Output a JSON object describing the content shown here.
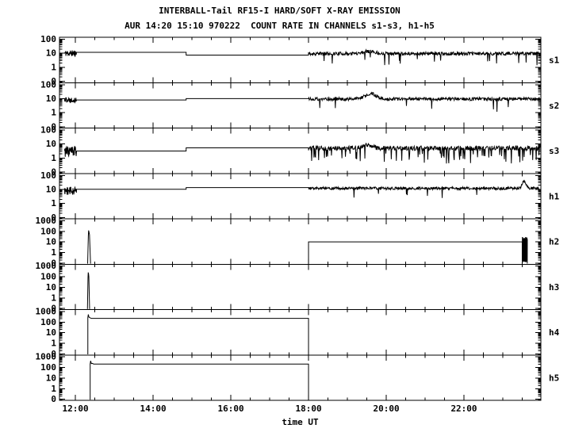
{
  "chart_data": {
    "type": "line",
    "title": "INTERBALL-Tail RF15-I HARD/SOFT X-RAY EMISSION",
    "subtitle": "AUR 14:20 15:10 970222  COUNT RATE IN CHANNELS s1-s3, h1-h5",
    "xlabel": "time UT",
    "x_unit": "hours UT on 1997-02-22",
    "x_range": [
      11.59,
      23.98
    ],
    "x_minor_step": 0.5,
    "x_major_ticks": [
      {
        "t": 12,
        "label": "12:00"
      },
      {
        "t": 14,
        "label": "14:00"
      },
      {
        "t": 16,
        "label": "16:00"
      },
      {
        "t": 18,
        "label": "18:00"
      },
      {
        "t": 20,
        "label": "20:00"
      },
      {
        "t": 22,
        "label": "22:00"
      }
    ],
    "grid": false,
    "legend": "none",
    "colors": {
      "fg": "#000000",
      "bg": "#ffffff"
    },
    "panels": [
      {
        "label": "s1",
        "seed": 11,
        "y_scale": "log",
        "y_range": [
          0.08,
          140
        ],
        "y_ticks": [
          {
            "v": 100,
            "label": "100"
          },
          {
            "v": 10,
            "label": "10"
          },
          {
            "v": 1,
            "label": "1"
          },
          {
            "v": 0.1,
            "label": "0"
          }
        ],
        "segments": [
          {
            "kind": "noise",
            "t": [
              11.72,
              12.03
            ],
            "center": 10,
            "spread": 0.22,
            "dt": 0.006
          },
          {
            "kind": "flat",
            "t": [
              12.03,
              14.85
            ],
            "level": 11.7
          },
          {
            "kind": "flat",
            "t": [
              14.85,
              18.0
            ],
            "level": 7.4
          },
          {
            "kind": "noise",
            "t": [
              18.0,
              23.96
            ],
            "center": 9.5,
            "spread": 0.12,
            "dt": 0.01,
            "down_prob": 0.02,
            "down_lo": 0.15,
            "down_hi": 0.4,
            "bumps": [
              {
                "t": 19.55,
                "w": 0.22,
                "f": 1.5
              }
            ]
          }
        ]
      },
      {
        "label": "s2",
        "seed": 22,
        "y_scale": "log",
        "y_range": [
          0.08,
          140
        ],
        "y_ticks": [
          {
            "v": 100,
            "label": "100"
          },
          {
            "v": 10,
            "label": "10"
          },
          {
            "v": 1,
            "label": "1"
          },
          {
            "v": 0.1,
            "label": "0"
          }
        ],
        "segments": [
          {
            "kind": "noise",
            "t": [
              11.72,
              12.03
            ],
            "center": 8.5,
            "spread": 0.2,
            "dt": 0.006
          },
          {
            "kind": "flat",
            "t": [
              12.03,
              14.85
            ],
            "level": 8.1
          },
          {
            "kind": "flat",
            "t": [
              14.85,
              18.0
            ],
            "level": 10.1
          },
          {
            "kind": "noise",
            "t": [
              18.0,
              23.96
            ],
            "center": 9.5,
            "spread": 0.12,
            "dt": 0.01,
            "down_prob": 0.02,
            "down_lo": 0.15,
            "down_hi": 0.4,
            "bumps": [
              {
                "t": 19.6,
                "w": 0.2,
                "f": 2.4
              }
            ]
          }
        ]
      },
      {
        "label": "s3",
        "seed": 33,
        "y_scale": "log",
        "y_range": [
          0.08,
          140
        ],
        "y_ticks": [
          {
            "v": 100,
            "label": "100"
          },
          {
            "v": 10,
            "label": "10"
          },
          {
            "v": 1,
            "label": "1"
          },
          {
            "v": 0.1,
            "label": "0"
          }
        ],
        "segments": [
          {
            "kind": "noise",
            "t": [
              11.72,
              12.03
            ],
            "center": 3,
            "spread": 0.4,
            "dt": 0.006
          },
          {
            "kind": "flat",
            "t": [
              12.03,
              14.85
            ],
            "level": 3.2
          },
          {
            "kind": "flat",
            "t": [
              14.85,
              18.0
            ],
            "level": 5.4
          },
          {
            "kind": "noise",
            "t": [
              18.0,
              23.96
            ],
            "center": 5,
            "spread": 0.17,
            "dt": 0.01,
            "down_prob": 0.09,
            "down_lo": 0.08,
            "down_hi": 0.35,
            "bumps": [
              {
                "t": 19.5,
                "w": 0.2,
                "f": 1.6
              }
            ]
          }
        ]
      },
      {
        "label": "h1",
        "seed": 44,
        "y_scale": "log",
        "y_range": [
          0.08,
          140
        ],
        "y_ticks": [
          {
            "v": 100,
            "label": "100"
          },
          {
            "v": 10,
            "label": "10"
          },
          {
            "v": 1,
            "label": "1"
          },
          {
            "v": 0.1,
            "label": "0"
          }
        ],
        "segments": [
          {
            "kind": "noise",
            "t": [
              11.72,
              12.03
            ],
            "center": 8,
            "spread": 0.28,
            "dt": 0.006
          },
          {
            "kind": "flat",
            "t": [
              12.03,
              14.85
            ],
            "level": 10.3
          },
          {
            "kind": "flat",
            "t": [
              14.85,
              18.0
            ],
            "level": 13.5
          },
          {
            "kind": "noise",
            "t": [
              18.0,
              23.96
            ],
            "center": 12,
            "spread": 0.1,
            "dt": 0.01,
            "down_prob": 0.015,
            "down_lo": 0.2,
            "down_hi": 0.45,
            "bumps": [
              {
                "t": 23.55,
                "w": 0.07,
                "f": 3.2
              }
            ]
          }
        ]
      },
      {
        "label": "h2",
        "seed": 55,
        "y_scale": "log",
        "y_range": [
          0.08,
          1500
        ],
        "y_ticks": [
          {
            "v": 1000,
            "label": "1000"
          },
          {
            "v": 100,
            "label": "100"
          },
          {
            "v": 10,
            "label": "10"
          },
          {
            "v": 1,
            "label": "1"
          },
          {
            "v": 0.1,
            "label": "0"
          }
        ],
        "segments": [
          {
            "kind": "spike",
            "t": 12.34,
            "peak": 120,
            "rise_w": 0.025,
            "fall_w": 0.05
          },
          {
            "kind": "step_flat",
            "t": [
              18.0,
              23.5
            ],
            "level": 10
          },
          {
            "kind": "burst",
            "t": [
              23.5,
              23.63
            ],
            "lo": 0.12,
            "hi": 30,
            "dt": 0.008,
            "join": true
          }
        ]
      },
      {
        "label": "h3",
        "seed": 66,
        "y_scale": "log",
        "y_range": [
          0.08,
          1500
        ],
        "y_ticks": [
          {
            "v": 1000,
            "label": "1000"
          },
          {
            "v": 100,
            "label": "100"
          },
          {
            "v": 10,
            "label": "10"
          },
          {
            "v": 1,
            "label": "1"
          },
          {
            "v": 0.1,
            "label": "0"
          }
        ],
        "segments": [
          {
            "kind": "spike",
            "t": 12.33,
            "peak": 250,
            "rise_w": 0.02,
            "fall_w": 0.035
          }
        ]
      },
      {
        "label": "h4",
        "seed": 77,
        "y_scale": "log",
        "y_range": [
          0.08,
          1500
        ],
        "y_ticks": [
          {
            "v": 1000,
            "label": "1000"
          },
          {
            "v": 100,
            "label": "100"
          },
          {
            "v": 10,
            "label": "10"
          },
          {
            "v": 1,
            "label": "1"
          },
          {
            "v": 0.1,
            "label": "0"
          }
        ],
        "segments": [
          {
            "kind": "pulse",
            "t": [
              12.32,
              18.0
            ],
            "level": 220,
            "overshoot": 520
          }
        ]
      },
      {
        "label": "h5",
        "seed": 88,
        "y_scale": "log",
        "y_range": [
          0.08,
          1500
        ],
        "y_ticks": [
          {
            "v": 1000,
            "label": "1000"
          },
          {
            "v": 100,
            "label": "100"
          },
          {
            "v": 10,
            "label": "10"
          },
          {
            "v": 1,
            "label": "1"
          },
          {
            "v": 0.1,
            "label": "0"
          }
        ],
        "segments": [
          {
            "kind": "pulse",
            "t": [
              12.38,
              18.0
            ],
            "level": 210,
            "overshoot": 420
          }
        ]
      }
    ]
  }
}
